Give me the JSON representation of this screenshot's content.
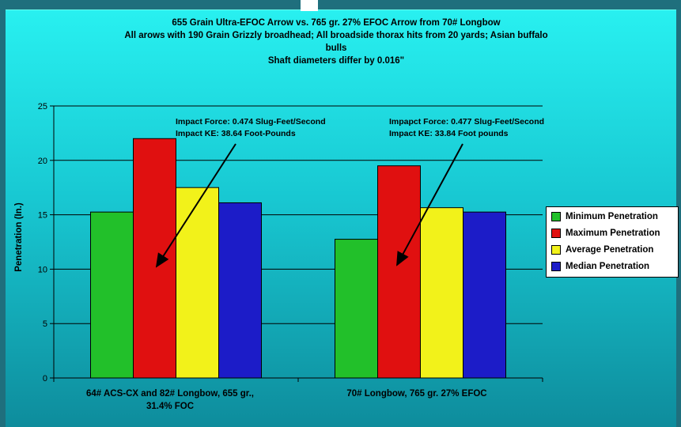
{
  "chart_data": {
    "type": "bar",
    "title": [
      "655 Grain Ultra-EFOC Arrow vs. 765 gr. 27% EFOC Arrow from 70# Longbow",
      "All arows with 190 Grain Grizzly broadhead; All broadside thorax hits from 20 yards; Asian buffalo",
      "bulls",
      "Shaft diameters differ by 0.016\""
    ],
    "ylabel": "Penetration (In.)",
    "xlabel": "",
    "ylim": [
      0,
      25
    ],
    "yticks": [
      "0",
      "5",
      "10",
      "15",
      "20",
      "25"
    ],
    "grid": true,
    "legend_position": "right",
    "categories": [
      [
        "64# ACS-CX and 82# Longbow, 655 gr.,",
        "31.4% FOC"
      ],
      [
        "70# Longbow, 765 gr. 27% EFOC"
      ]
    ],
    "series": [
      {
        "name": "Minimum Penetration",
        "color": "#22c02a",
        "values": [
          15.25,
          12.75
        ]
      },
      {
        "name": "Maximum Penetration",
        "color": "#e01010",
        "values": [
          22.0,
          19.5
        ]
      },
      {
        "name": "Average Penetration",
        "color": "#f2f21a",
        "values": [
          17.5,
          15.65
        ]
      },
      {
        "name": "Median Penetration",
        "color": "#1c1cc8",
        "values": [
          16.1,
          15.25
        ]
      }
    ],
    "annotations": [
      {
        "lines": [
          "Impact Force: 0.474 Slug-Feet/Second",
          "Impact KE: 38.64 Foot-Pounds"
        ]
      },
      {
        "lines": [
          "Impapct Force: 0.477 Slug-Feet/Second",
          "Impact KE: 33.84 Foot pounds"
        ]
      }
    ]
  }
}
